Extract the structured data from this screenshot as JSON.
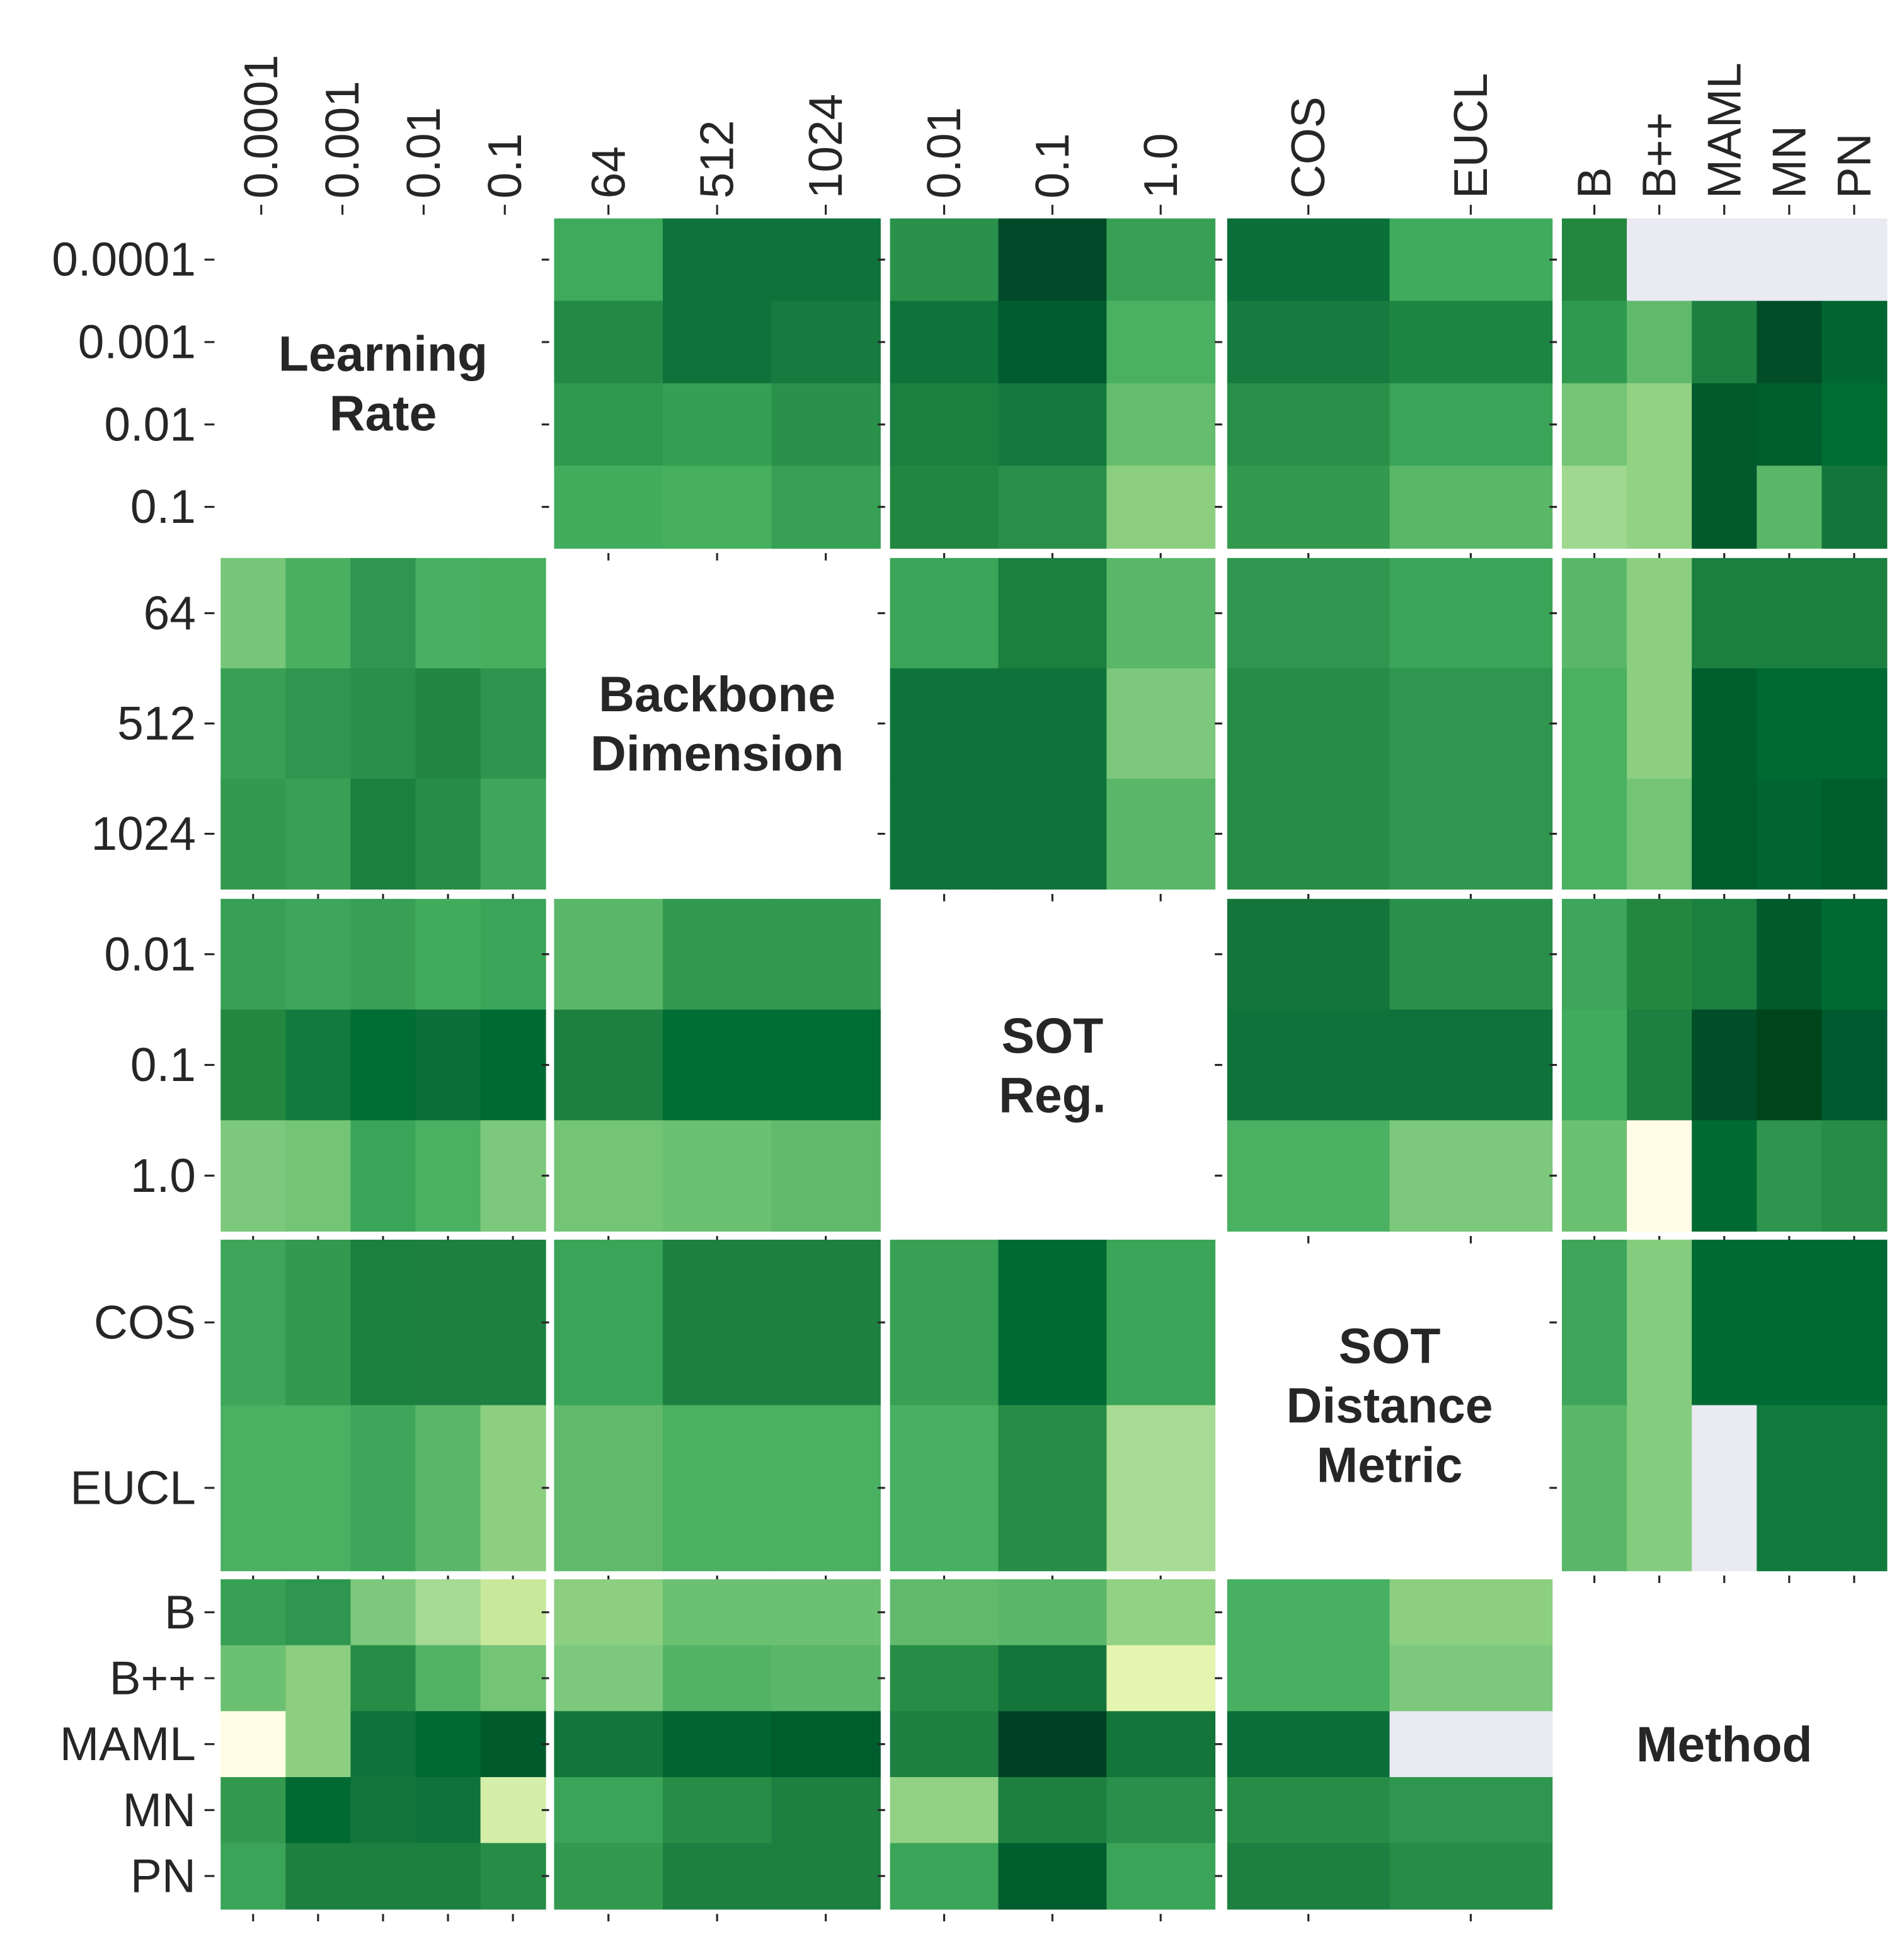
{
  "chart_data": {
    "type": "heatmap_matrix",
    "missing_color": "#eaeaf2",
    "variables": [
      {
        "label": [
          "Learning",
          "Rate"
        ],
        "ticks": [
          "0.0001",
          "0.001",
          "0.01",
          "0.1"
        ]
      },
      {
        "label": [
          "Backbone",
          "Dimension"
        ],
        "ticks": [
          "64",
          "512",
          "1024"
        ]
      },
      {
        "label": [
          "SOT",
          "Reg."
        ],
        "ticks": [
          "0.01",
          "0.1",
          "1.0"
        ]
      },
      {
        "label": [
          "SOT",
          "Distance",
          "Metric"
        ],
        "ticks": [
          "COS",
          "EUCL"
        ]
      },
      {
        "label": [
          "Method"
        ],
        "ticks": [
          "B",
          "B++",
          "MAML",
          "MN",
          "PN"
        ]
      }
    ],
    "panels": [
      [
        null,
        [
          [
            "#3fa95c",
            "#0e733a",
            "#0e733a"
          ],
          [
            "#228a44",
            "#0e733a",
            "#167b3f"
          ],
          [
            "#2f9a4f",
            "#34a053",
            "#2a914b"
          ],
          [
            "#43ad5e",
            "#47b05f",
            "#37a055"
          ]
        ],
        [
          [
            "#2a914b",
            "#004a2a",
            "#38a055"
          ],
          [
            "#0e733a",
            "#005c2e",
            "#4ab062"
          ],
          [
            "#1b7f40",
            "#13793d",
            "#66bd6e"
          ],
          [
            "#218640",
            "#2a8f4a",
            "#8ccf81"
          ]
        ],
        [
          [
            "#0a6f38",
            "#41ab5d"
          ],
          [
            "#167b3f",
            "#1d8542"
          ],
          [
            "#29904a",
            "#3aa458"
          ],
          [
            "#32994f",
            "#59b767"
          ]
        ],
        [
          [
            "#23873f",
            null,
            null,
            null,
            null
          ],
          [
            "#2f9a4f",
            "#61ba6c",
            "#1d8040",
            "#004d28",
            "#006530"
          ],
          [
            "#74c476",
            "#92d284",
            "#005a2c",
            "#005e2e",
            "#006d33"
          ],
          [
            "#a0d890",
            "#92d284",
            "#005a2c",
            "#5ab769",
            "#14753b"
          ]
        ]
      ],
      [
        [
          [
            "#77c679",
            "#4aaf61",
            "#2e964e",
            "#47b062",
            "#46ae5f"
          ],
          [
            "#37a055",
            "#2e964e",
            "#2a8f4a",
            "#228640",
            "#2f944e"
          ],
          [
            "#32994f",
            "#37a055",
            "#1b7f40",
            "#268c46",
            "#3da65a"
          ]
        ],
        null,
        [
          [
            "#3aa458",
            "#1b7f40",
            "#5ab769"
          ],
          [
            "#0e733a",
            "#0e733a",
            "#7cc87c"
          ],
          [
            "#0e733a",
            "#0e733a",
            "#5ab769"
          ]
        ],
        [
          [
            "#2e964e",
            "#3aa458"
          ],
          [
            "#268c46",
            "#2e964e"
          ],
          [
            "#268c46",
            "#2e964e"
          ]
        ],
        [
          [
            "#5ab769",
            "#8ccf81",
            "#1b7f40",
            "#1b7f40",
            "#1b7f40"
          ],
          [
            "#4ab062",
            "#8ccf81",
            "#005e2e",
            "#006a33",
            "#006a33"
          ],
          [
            "#4ab062",
            "#74c476",
            "#005e2e",
            "#006530",
            "#005e2e"
          ]
        ]
      ],
      [
        [
          [
            "#37a055",
            "#3da65a",
            "#37a055",
            "#41ab5d",
            "#3aa458"
          ],
          [
            "#23873f",
            "#127a3d",
            "#006d33",
            "#0a6f38",
            "#006a33"
          ],
          [
            "#7cc87c",
            "#74c476",
            "#3aa458",
            "#4ab062",
            "#7cc87c"
          ]
        ],
        [
          [
            "#5ab769",
            "#32994f",
            "#32994f"
          ],
          [
            "#1d8040",
            "#006d33",
            "#006d33"
          ],
          [
            "#74c476",
            "#6bc072",
            "#61ba6c"
          ]
        ],
        null,
        [
          [
            "#14753b",
            "#2a8f4a"
          ],
          [
            "#0e733a",
            "#0e733a"
          ],
          [
            "#4ab062",
            "#7cc87c"
          ]
        ],
        [
          [
            "#3da65a",
            "#23873f",
            "#1b7f40",
            "#005a2c",
            "#006a33"
          ],
          [
            "#41ab5d",
            "#1d8040",
            "#004d28",
            "#00441b",
            "#005a30"
          ],
          [
            "#6bc072",
            "#fffde6",
            "#006a33",
            "#2f944e",
            "#268c46"
          ]
        ]
      ],
      [
        [
          [
            "#3da65a",
            "#32994f",
            "#1b7f40",
            "#1d8040",
            "#1d8040"
          ],
          [
            "#4ab062",
            "#4ab062",
            "#3da65a",
            "#5ab769",
            "#8ccf81"
          ]
        ],
        [
          [
            "#3aa458",
            "#1d8040",
            "#1d8040"
          ],
          [
            "#61ba6c",
            "#4ab062",
            "#4ab062"
          ]
        ],
        [
          [
            "#37a055",
            "#006a33",
            "#3aa458"
          ],
          [
            "#47b062",
            "#268c46",
            "#a8dc94"
          ]
        ],
        null,
        [
          [
            "#3da65a",
            "#85cc7f",
            "#006a33",
            "#006a33",
            "#006a33"
          ],
          [
            "#5ab769",
            "#85cc7f",
            null,
            "#127a3d",
            "#127a3d"
          ]
        ]
      ],
      [
        [
          [
            "#37a055",
            "#2e964e",
            "#7cc87c",
            "#a4da92",
            "#c8e99c"
          ],
          [
            "#6bc072",
            "#8ccf81",
            "#268c46",
            "#52b366",
            "#74c476"
          ],
          [
            "#fffde6",
            "#8ccf81",
            "#0e733a",
            "#006a33",
            "#005a2c"
          ],
          [
            "#32994f",
            "#006a33",
            "#14753b",
            "#0e733a",
            "#d5eeaa"
          ],
          [
            "#3aa458",
            "#1d8040",
            "#1d8040",
            "#1d8040",
            "#268c46"
          ]
        ],
        [
          [
            "#8ccf81",
            "#6bc072",
            "#6bc072"
          ],
          [
            "#7cc87c",
            "#52b366",
            "#5ab769"
          ],
          [
            "#14753b",
            "#006530",
            "#005e2e"
          ],
          [
            "#3aa458",
            "#268c46",
            "#1d8040"
          ],
          [
            "#32994f",
            "#1d8040",
            "#1d8040"
          ]
        ],
        [
          [
            "#61ba6c",
            "#5ab769",
            "#92d284"
          ],
          [
            "#268c46",
            "#14753b",
            "#e5f5b0"
          ],
          [
            "#1d8040",
            "#004125",
            "#14753b"
          ],
          [
            "#92d284",
            "#1d8040",
            "#2a8f4a"
          ],
          [
            "#3aa458",
            "#005e2e",
            "#3aa458"
          ]
        ],
        [
          [
            "#47b062",
            "#8ccf81"
          ],
          [
            "#47b062",
            "#7cc87c"
          ],
          [
            "#0a6f38",
            null
          ],
          [
            "#268c46",
            "#2e964e"
          ],
          [
            "#1d8040",
            "#268c46"
          ]
        ],
        null
      ]
    ]
  }
}
